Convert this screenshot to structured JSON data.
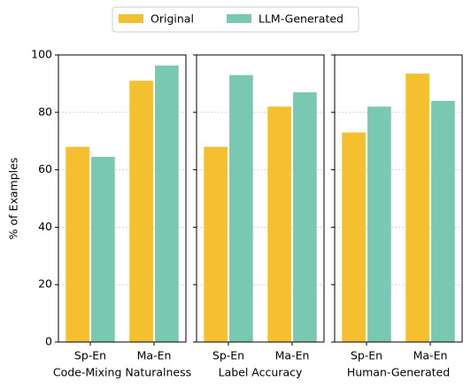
{
  "chart_data": [
    {
      "type": "bar",
      "xlabel": "Code-Mixing Naturalness",
      "ylabel": "% of Examples",
      "categories": [
        "Sp-En",
        "Ma-En"
      ],
      "series": [
        {
          "name": "Original",
          "color": "#f4c030",
          "values": [
            68,
            91
          ]
        },
        {
          "name": "LLM-Generated",
          "color": "#78c8b2",
          "values": [
            64.5,
            96.3
          ]
        }
      ],
      "ylim": [
        0,
        100
      ],
      "yticks": [
        0,
        20,
        40,
        60,
        80,
        100
      ],
      "grid": true
    },
    {
      "type": "bar",
      "xlabel": "Label Accuracy",
      "categories": [
        "Sp-En",
        "Ma-En"
      ],
      "series": [
        {
          "color": "#f4c030",
          "values": [
            68,
            82
          ]
        },
        {
          "color": "#78c8b2",
          "values": [
            93,
            87
          ]
        }
      ],
      "ylim": [
        0,
        100
      ],
      "yticks": [
        0,
        20,
        40,
        60,
        80,
        100
      ],
      "grid": true
    },
    {
      "type": "bar",
      "xlabel": "Human-Generated",
      "categories": [
        "Sp-En",
        "Ma-En"
      ],
      "series": [
        {
          "color": "#f4c030",
          "values": [
            73,
            93.5
          ]
        },
        {
          "color": "#78c8b2",
          "values": [
            82,
            84
          ]
        }
      ],
      "ylim": [
        0,
        100
      ],
      "yticks": [
        0,
        20,
        40,
        60,
        80,
        100
      ],
      "grid": true
    }
  ]
}
